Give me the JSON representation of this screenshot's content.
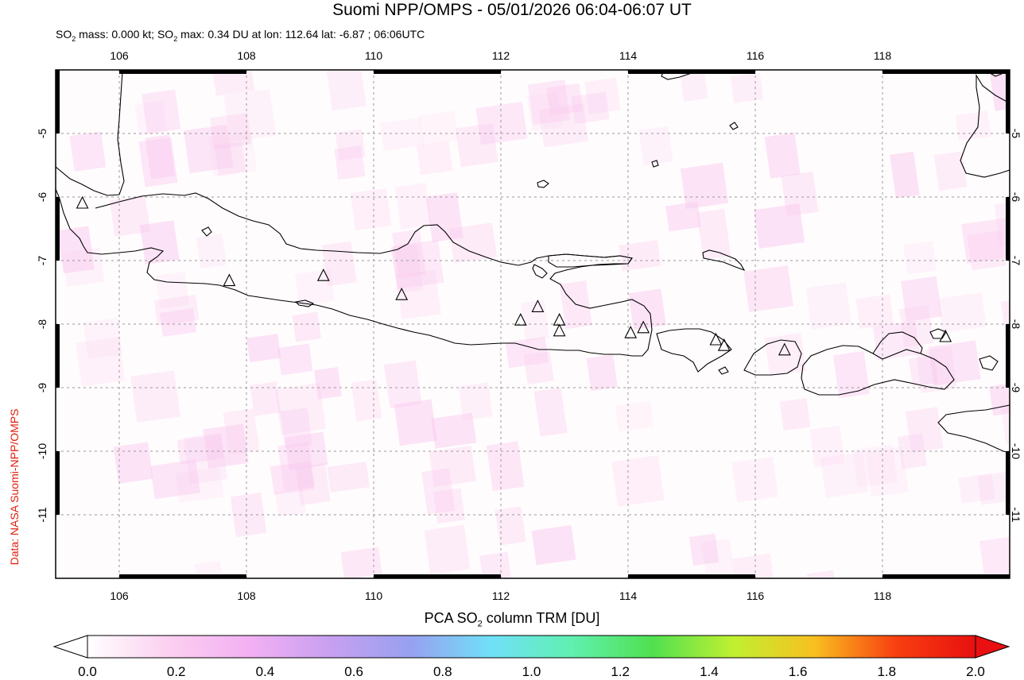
{
  "title": "Suomi NPP/OMPS - 05/01/2026 06:04-06:07 UT",
  "subtitle": {
    "so2_mass_prefix": "SO",
    "so2_mass_sub": "2",
    "so2_mass_text": " mass: 0.000 kt; SO",
    "so2_max_sub": "2",
    "so2_max_text": " max: 0.34 DU at lon: 112.64 lat: -6.87 ; 06:06UTC"
  },
  "side_credit": "Data: NASA Suomi-NPP/OMPS",
  "map": {
    "lon_range": [
      105,
      120
    ],
    "lat_range": [
      -12,
      -4
    ],
    "lon_ticks": [
      "106",
      "108",
      "110",
      "112",
      "114",
      "116",
      "118"
    ],
    "lat_ticks": [
      "-5",
      "-6",
      "-7",
      "-8",
      "-9",
      "-10",
      "-11"
    ],
    "volcano_icon": "triangle-volcano-icon",
    "volcanoes": [
      {
        "lon": 105.42,
        "lat": -6.1
      },
      {
        "lon": 107.73,
        "lat": -7.32
      },
      {
        "lon": 109.21,
        "lat": -7.24
      },
      {
        "lon": 110.44,
        "lat": -7.54
      },
      {
        "lon": 112.31,
        "lat": -7.94
      },
      {
        "lon": 112.58,
        "lat": -7.73
      },
      {
        "lon": 112.92,
        "lat": -7.94
      },
      {
        "lon": 112.92,
        "lat": -8.11
      },
      {
        "lon": 114.04,
        "lat": -8.14
      },
      {
        "lon": 114.24,
        "lat": -8.06
      },
      {
        "lon": 115.38,
        "lat": -8.25
      },
      {
        "lon": 115.51,
        "lat": -8.34
      },
      {
        "lon": 116.46,
        "lat": -8.41
      },
      {
        "lon": 118.99,
        "lat": -8.2
      }
    ],
    "colors": {
      "land_outline": "#000000",
      "grid": "#999999",
      "pixel_tint": "#f9c8ee"
    }
  },
  "colorbar": {
    "label_prefix": "PCA SO",
    "label_sub": "2",
    "label_suffix": " column TRM [DU]",
    "ticks": [
      "0.0",
      "0.2",
      "0.4",
      "0.6",
      "0.8",
      "1.0",
      "1.2",
      "1.4",
      "1.6",
      "1.8",
      "2.0"
    ],
    "colors": [
      "#ffffff",
      "#fbd0f0",
      "#f3b0f3",
      "#c8a0f0",
      "#98a0f0",
      "#70e0f8",
      "#60f0b0",
      "#50e050",
      "#c0f030",
      "#f8c020",
      "#f84010",
      "#e81010"
    ]
  }
}
